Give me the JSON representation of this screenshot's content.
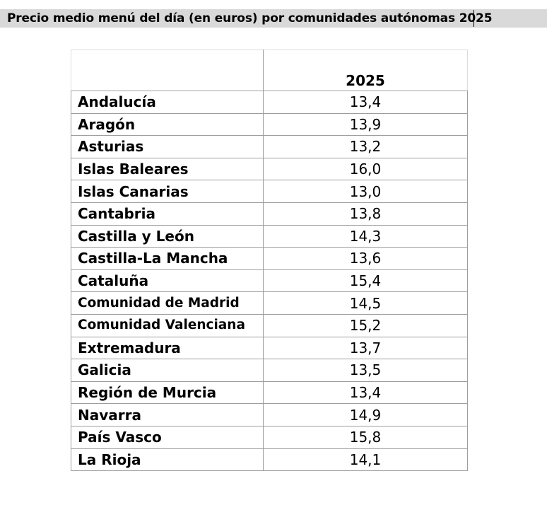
{
  "title": "Precio medio menú del día (en euros) por comunidades autónomas 2025",
  "table": {
    "header_name": "",
    "header_year": "2025",
    "rows": [
      {
        "name": "Andalucía",
        "value": "13,4"
      },
      {
        "name": "Aragón",
        "value": "13,9"
      },
      {
        "name": "Asturias",
        "value": "13,2"
      },
      {
        "name": "Islas Baleares",
        "value": "16,0"
      },
      {
        "name": "Islas Canarias",
        "value": "13,0"
      },
      {
        "name": "Cantabria",
        "value": "13,8"
      },
      {
        "name": "Castilla y León",
        "value": "14,3"
      },
      {
        "name": "Castilla-La Mancha",
        "value": "13,6"
      },
      {
        "name": "Cataluña",
        "value": "15,4"
      },
      {
        "name": "Comunidad de Madrid",
        "value": "14,5"
      },
      {
        "name": "Comunidad Valenciana",
        "value": "15,2"
      },
      {
        "name": "Extremadura",
        "value": "13,7"
      },
      {
        "name": "Galicia",
        "value": "13,5"
      },
      {
        "name": "Región de Murcia",
        "value": "13,4"
      },
      {
        "name": "Navarra",
        "value": "14,9"
      },
      {
        "name": "País Vasco",
        "value": "15,8"
      },
      {
        "name": "La Rioja",
        "value": "14,1"
      }
    ]
  },
  "colors": {
    "title_background": "#d9d9d9",
    "grid_line": "#9e9e9e",
    "text": "#000000",
    "page_background": "#ffffff"
  }
}
